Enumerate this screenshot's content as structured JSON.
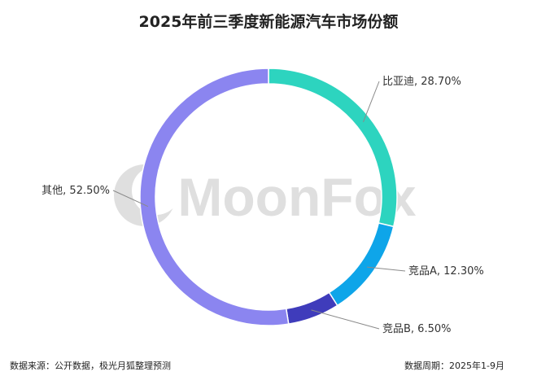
{
  "title": "2025年前三季度新能源汽车市场份额",
  "watermark": "MoonFox",
  "footer": {
    "source": "数据来源：公开数据，极光月狐整理预测",
    "period": "数据周期：2025年1-9月"
  },
  "chart_data": {
    "type": "pie",
    "variant": "donut",
    "title": "2025年前三季度新能源汽车市场份额",
    "slices": [
      {
        "name": "比亚迪",
        "value": 28.7,
        "label": "比亚迪, 28.70%",
        "color": "#2dd4bf"
      },
      {
        "name": "竞品A",
        "value": 12.3,
        "label": "竞品A, 12.30%",
        "color": "#0ea5e9"
      },
      {
        "name": "竞品B",
        "value": 6.5,
        "label": "竞品B, 6.50%",
        "color": "#3f3cbb"
      },
      {
        "name": "其他",
        "value": 52.5,
        "label": "其他, 52.50%",
        "color": "#8b85f0"
      }
    ],
    "legend": "none"
  }
}
